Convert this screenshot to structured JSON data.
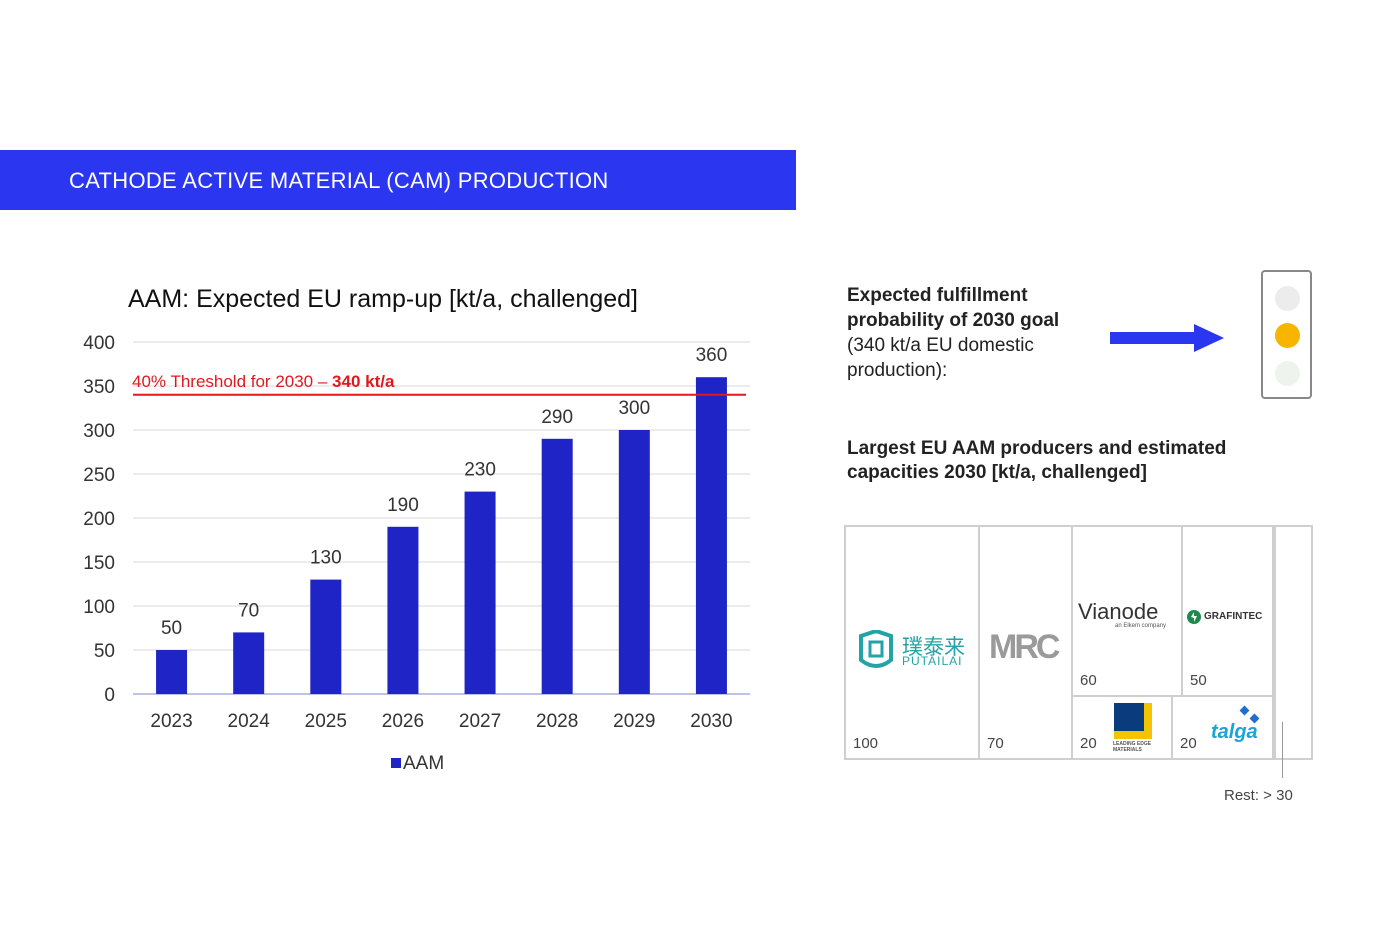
{
  "banner": {
    "title": "CATHODE ACTIVE MATERIAL (CAM) PRODUCTION",
    "color": "#2b36f0"
  },
  "chart_data": {
    "type": "bar",
    "title": "AAM: Expected EU ramp-up [kt/a, challenged]",
    "categories": [
      "2023",
      "2024",
      "2025",
      "2026",
      "2027",
      "2028",
      "2029",
      "2030"
    ],
    "series": [
      {
        "name": "AAM",
        "values": [
          50,
          70,
          130,
          190,
          230,
          290,
          300,
          360
        ],
        "color": "#1f24c6"
      }
    ],
    "ylim": [
      0,
      400
    ],
    "yticks": [
      0,
      50,
      100,
      150,
      200,
      250,
      300,
      350,
      400
    ],
    "grid": true,
    "legend": "bottom",
    "threshold": {
      "value": 340,
      "label_prefix": "40% Threshold for 2030 – ",
      "label_value": "340 kt/a",
      "color": "#e0191e"
    }
  },
  "fulfillment": {
    "line1": "Expected fulfillment",
    "line2": "probability of 2030 goal",
    "line3": "(340 kt/a EU domestic",
    "line4": "production):",
    "status": "yellow"
  },
  "producers": {
    "title": "Largest EU AAM producers and estimated capacities 2030 [kt/a, challenged]",
    "items": [
      {
        "name": "PUTAILAI",
        "chinese": "璞泰来",
        "value": "100"
      },
      {
        "name": "MRC",
        "value": "70"
      },
      {
        "name": "Vianode",
        "tagline": "an Elkem company",
        "value": "60"
      },
      {
        "name": "GRAFINTEC",
        "value": "50"
      },
      {
        "name": "LEADING EDGE MATERIALS",
        "value": "20"
      },
      {
        "name": "talga",
        "value": "20"
      }
    ],
    "rest": "Rest: > 30"
  }
}
